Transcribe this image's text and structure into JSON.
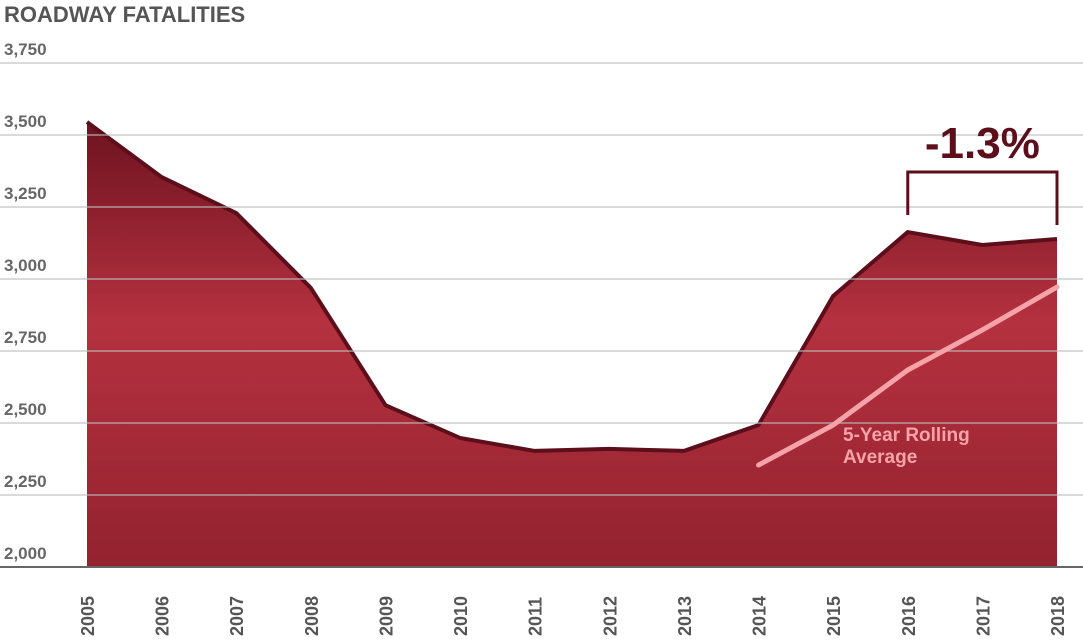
{
  "chart_data": {
    "type": "area",
    "title": "ROADWAY FATALITIES",
    "categories": [
      "2005",
      "2006",
      "2007",
      "2008",
      "2009",
      "2010",
      "2011",
      "2012",
      "2013",
      "2014",
      "2015",
      "2016",
      "2017",
      "2018"
    ],
    "values": [
      3545,
      3354,
      3229,
      2969,
      2562,
      2448,
      2403,
      2410,
      2403,
      2493,
      2941,
      3163,
      3118,
      3139
    ],
    "color": "#a12a38",
    "line_color": "#5c0f1b",
    "series": [
      {
        "name": "5-Year Rolling Average",
        "type": "line",
        "color": "#f5a3a8",
        "values": [
          null,
          null,
          null,
          null,
          null,
          null,
          null,
          null,
          null,
          2354,
          2493,
          2684,
          2823,
          2972
        ]
      }
    ],
    "ylim": [
      2000,
      3750
    ],
    "yticks": [
      {
        "value": 2000,
        "label": "2,000"
      },
      {
        "value": 2250,
        "label": "2,250"
      },
      {
        "value": 2500,
        "label": "2,500"
      },
      {
        "value": 2750,
        "label": "2,750"
      },
      {
        "value": 3000,
        "label": "3,000"
      },
      {
        "value": 3250,
        "label": "3,250"
      },
      {
        "value": 3500,
        "label": "3,500"
      },
      {
        "value": 3750,
        "label": "3,750"
      }
    ],
    "grid": true,
    "annotations": [
      {
        "text": "-1.3%"
      }
    ]
  }
}
